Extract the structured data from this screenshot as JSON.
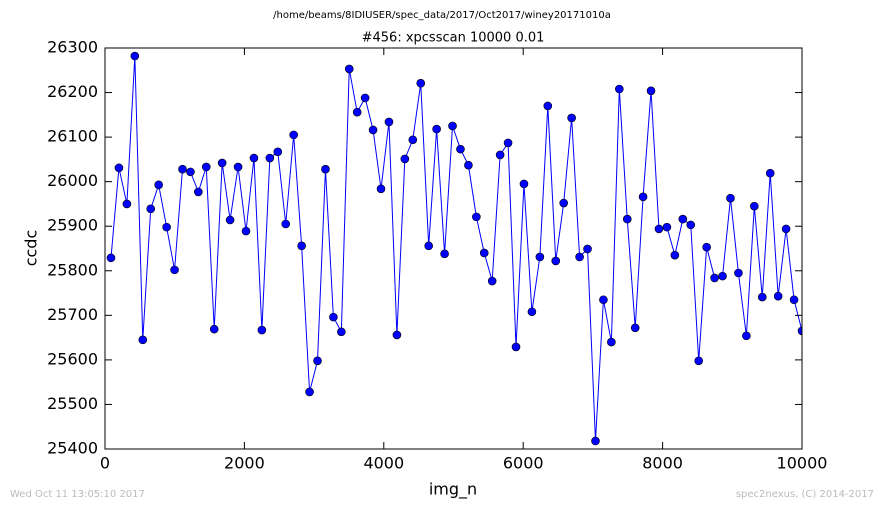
{
  "chart_data": {
    "type": "line",
    "suptitle": "/home/beams/8IDIUSER/spec_data/2017/Oct2017/winey20171010a",
    "title": "#456: xpcsscan 10000 0.01",
    "xlabel": "img_n",
    "ylabel": "ccdc",
    "footer_left": "Wed Oct 11 13:05:10 2017",
    "footer_right": "spec2nexus, (C) 2014-2017",
    "x": [
      86,
      200,
      314,
      428,
      542,
      656,
      770,
      884,
      998,
      1112,
      1226,
      1339,
      1453,
      1567,
      1681,
      1795,
      1909,
      2023,
      2137,
      2251,
      2365,
      2479,
      2593,
      2707,
      2821,
      2935,
      3049,
      3163,
      3277,
      3391,
      3504,
      3618,
      3732,
      3846,
      3960,
      4074,
      4188,
      4302,
      4416,
      4530,
      4644,
      4758,
      4872,
      4986,
      5100,
      5214,
      5328,
      5441,
      5555,
      5669,
      5783,
      5897,
      6011,
      6125,
      6239,
      6353,
      6467,
      6581,
      6695,
      6809,
      6923,
      7037,
      7151,
      7265,
      7379,
      7493,
      7607,
      7720,
      7834,
      7948,
      8062,
      8176,
      8290,
      8404,
      8518,
      8632,
      8746,
      8860,
      8974,
      9088,
      9202,
      9316,
      9430,
      9544,
      9658,
      9772,
      9886,
      10000
    ],
    "series": [
      {
        "color": "#0000ff",
        "values": [
          25829,
          26031,
          25950,
          26282,
          25645,
          25939,
          25993,
          25898,
          25802,
          26028,
          26022,
          25977,
          26033,
          25669,
          26042,
          25914,
          26033,
          25889,
          26053,
          25667,
          26053,
          26067,
          25905,
          26105,
          25856,
          25528,
          25598,
          26028,
          25696,
          25663,
          26253,
          26156,
          26188,
          26116,
          25984,
          26134,
          25656,
          26051,
          26094,
          26221,
          25856,
          26118,
          25838,
          26125,
          26073,
          26037,
          25921,
          25840,
          25777,
          26060,
          26087,
          25629,
          25995,
          25708,
          25831,
          26170,
          25822,
          25952,
          26143,
          25831,
          25849,
          25418,
          25735,
          25640,
          26208,
          25916,
          25672,
          25966,
          26204,
          25894,
          25898,
          25835,
          25916,
          25903,
          25598,
          25853,
          25784,
          25788,
          25963,
          25795,
          25654,
          25945,
          25741,
          26019,
          25743,
          25894,
          25735,
          25665
        ]
      }
    ],
    "xlim": [
      0,
      10000
    ],
    "xticks": [
      0,
      2000,
      4000,
      6000,
      8000,
      10000
    ],
    "ylim": [
      25400,
      26300
    ],
    "yticks": [
      25400,
      25500,
      25600,
      25700,
      25800,
      25900,
      26000,
      26100,
      26200,
      26300
    ]
  }
}
